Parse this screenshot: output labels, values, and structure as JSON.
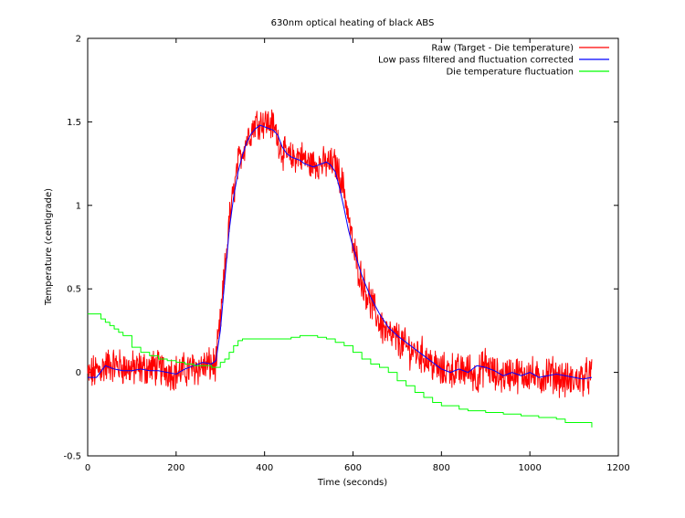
{
  "chart_data": {
    "type": "line",
    "title": "630nm optical heating of black ABS",
    "xlabel": "Time (seconds)",
    "ylabel": "Temperature (centigrade)",
    "xlim": [
      0,
      1200
    ],
    "ylim": [
      -0.5,
      2
    ],
    "x_ticks": [
      "0",
      "200",
      "400",
      "600",
      "800",
      "1000",
      "1200"
    ],
    "y_ticks": [
      "-0.5",
      "0",
      "0.5",
      "1",
      "1.5",
      "2"
    ],
    "grid": false,
    "legend_position": "top-right",
    "series": [
      {
        "name": "Raw (Target - Die temperature)",
        "color": "#ff0000",
        "style": "noisy-line",
        "x": [
          0,
          50,
          100,
          150,
          200,
          250,
          290,
          300,
          320,
          340,
          360,
          380,
          400,
          420,
          440,
          460,
          480,
          500,
          520,
          540,
          560,
          580,
          600,
          620,
          640,
          660,
          680,
          700,
          720,
          740,
          760,
          780,
          800,
          820,
          840,
          860,
          880,
          900,
          920,
          940,
          960,
          980,
          1000,
          1020,
          1040,
          1060,
          1080,
          1100,
          1120,
          1140
        ],
        "y": [
          -0.02,
          0.05,
          0.02,
          0.03,
          0.0,
          0.03,
          0.05,
          0.3,
          0.9,
          1.25,
          1.4,
          1.5,
          1.5,
          1.48,
          1.32,
          1.28,
          1.3,
          1.25,
          1.25,
          1.25,
          1.25,
          1.1,
          0.75,
          0.55,
          0.42,
          0.3,
          0.22,
          0.2,
          0.15,
          0.12,
          0.1,
          0.05,
          0.0,
          0.02,
          0.0,
          0.02,
          -0.03,
          0.05,
          -0.02,
          -0.02,
          0.0,
          -0.02,
          0.0,
          -0.05,
          0.0,
          -0.02,
          -0.05,
          -0.05,
          -0.03,
          -0.02
        ]
      },
      {
        "name": "Low pass filtered and fluctuation corrected",
        "color": "#0000ff",
        "style": "line",
        "x": [
          0,
          20,
          40,
          60,
          80,
          100,
          120,
          140,
          160,
          180,
          200,
          220,
          240,
          260,
          280,
          290,
          300,
          310,
          320,
          330,
          340,
          350,
          360,
          370,
          380,
          390,
          400,
          410,
          420,
          430,
          440,
          450,
          460,
          470,
          480,
          490,
          500,
          510,
          520,
          530,
          540,
          550,
          560,
          570,
          580,
          590,
          600,
          620,
          640,
          660,
          680,
          700,
          720,
          740,
          760,
          780,
          800,
          820,
          840,
          860,
          880,
          900,
          920,
          940,
          960,
          980,
          1000,
          1020,
          1040,
          1060,
          1080,
          1100,
          1120,
          1140
        ],
        "y": [
          -0.03,
          -0.03,
          0.04,
          0.02,
          0.01,
          0.01,
          0.02,
          0.01,
          0.01,
          0.0,
          -0.01,
          0.02,
          0.04,
          0.06,
          0.05,
          0.07,
          0.25,
          0.55,
          0.85,
          1.05,
          1.2,
          1.3,
          1.38,
          1.43,
          1.46,
          1.48,
          1.47,
          1.46,
          1.45,
          1.42,
          1.35,
          1.31,
          1.29,
          1.28,
          1.27,
          1.25,
          1.24,
          1.23,
          1.24,
          1.25,
          1.26,
          1.24,
          1.2,
          1.1,
          0.98,
          0.85,
          0.75,
          0.58,
          0.45,
          0.35,
          0.27,
          0.22,
          0.18,
          0.14,
          0.1,
          0.06,
          0.02,
          0.0,
          0.02,
          0.0,
          0.04,
          0.03,
          0.01,
          -0.02,
          0.0,
          -0.02,
          0.0,
          -0.03,
          -0.02,
          -0.01,
          -0.02,
          -0.03,
          -0.04,
          -0.03
        ]
      },
      {
        "name": "Die temperature fluctuation",
        "color": "#00ff00",
        "style": "step",
        "x": [
          0,
          20,
          30,
          40,
          50,
          60,
          70,
          80,
          100,
          120,
          140,
          160,
          180,
          200,
          220,
          240,
          260,
          280,
          300,
          310,
          320,
          330,
          340,
          350,
          360,
          380,
          400,
          420,
          440,
          460,
          480,
          500,
          520,
          540,
          560,
          580,
          600,
          620,
          640,
          660,
          680,
          700,
          720,
          740,
          760,
          780,
          800,
          820,
          840,
          860,
          880,
          900,
          920,
          940,
          960,
          980,
          1000,
          1020,
          1040,
          1060,
          1080,
          1100,
          1120,
          1140
        ],
        "y": [
          0.35,
          0.35,
          0.32,
          0.3,
          0.28,
          0.26,
          0.24,
          0.22,
          0.15,
          0.12,
          0.1,
          0.08,
          0.07,
          0.06,
          0.05,
          0.04,
          0.04,
          0.03,
          0.06,
          0.08,
          0.12,
          0.16,
          0.19,
          0.2,
          0.2,
          0.2,
          0.2,
          0.2,
          0.2,
          0.21,
          0.22,
          0.22,
          0.21,
          0.2,
          0.18,
          0.16,
          0.12,
          0.08,
          0.05,
          0.03,
          0.0,
          -0.05,
          -0.08,
          -0.12,
          -0.15,
          -0.18,
          -0.2,
          -0.2,
          -0.22,
          -0.23,
          -0.23,
          -0.24,
          -0.24,
          -0.25,
          -0.25,
          -0.26,
          -0.26,
          -0.27,
          -0.27,
          -0.28,
          -0.3,
          -0.3,
          -0.3,
          -0.33
        ]
      }
    ]
  }
}
